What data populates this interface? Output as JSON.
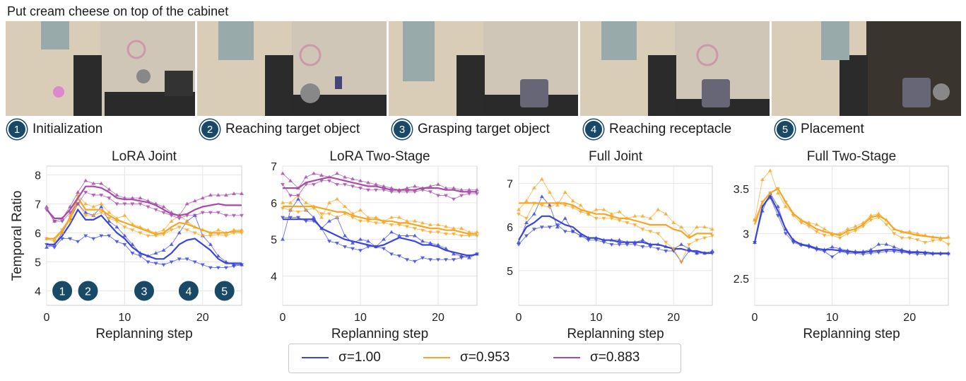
{
  "task": "Put cream cheese on top of the cabinet",
  "steps": [
    {
      "num": "1",
      "label": "Initialization"
    },
    {
      "num": "2",
      "label": "Reaching target object"
    },
    {
      "num": "3",
      "label": "Grasping target object"
    },
    {
      "num": "4",
      "label": "Reaching receptacle"
    },
    {
      "num": "5",
      "label": "Placement"
    }
  ],
  "legend": [
    {
      "label": "σ=1.00",
      "color": "#3b46d9"
    },
    {
      "label": "σ=0.953",
      "color": "#f5a623"
    },
    {
      "label": "σ=0.883",
      "color": "#a64ca6"
    }
  ],
  "chart_data": [
    {
      "type": "line",
      "title": "LoRA Joint",
      "xlabel": "Replanning step",
      "ylabel": "Temporal Ratio",
      "xlim": [
        0,
        25
      ],
      "ylim": [
        3.5,
        8.3
      ],
      "xticks": [
        0,
        10,
        20
      ],
      "yticks": [
        4,
        5,
        6,
        7,
        8
      ],
      "grid": true,
      "step_markers": [
        {
          "label": "1",
          "x": 2
        },
        {
          "label": "2",
          "x": 5.3
        },
        {
          "label": "3",
          "x": 12.5
        },
        {
          "label": "4",
          "x": 18.2
        },
        {
          "label": "5",
          "x": 22.8
        }
      ],
      "series": [
        {
          "name": "σ=1.00",
          "color": "#3b46d9",
          "smooth": [
            5.6,
            5.6,
            5.9,
            6.3,
            6.8,
            6.45,
            6.45,
            6.6,
            6.3,
            6.0,
            5.8,
            5.5,
            5.3,
            5.2,
            5.1,
            5.1,
            5.3,
            5.6,
            5.75,
            5.8,
            5.6,
            5.4,
            5.1,
            4.95,
            4.95,
            4.95
          ],
          "raw_up": [
            5.5,
            5.6,
            6.0,
            6.5,
            7.0,
            6.7,
            6.6,
            6.9,
            6.4,
            6.2,
            5.9,
            5.6,
            5.3,
            5.2,
            5.3,
            5.4,
            5.6,
            6.0,
            6.4,
            6.6,
            5.9,
            5.6,
            5.2,
            5.0,
            4.9,
            4.9
          ],
          "raw_down": [
            5.6,
            5.5,
            5.8,
            5.8,
            5.7,
            5.9,
            5.8,
            5.9,
            5.9,
            5.7,
            5.6,
            5.3,
            5.2,
            5.0,
            4.95,
            4.9,
            5.0,
            5.1,
            5.1,
            5.0,
            4.9,
            4.8,
            4.8,
            4.8,
            4.85,
            4.9
          ]
        },
        {
          "name": "σ=0.953",
          "color": "#f5a623",
          "smooth": [
            5.8,
            5.8,
            6.1,
            6.5,
            7.2,
            6.8,
            6.8,
            6.8,
            6.6,
            6.45,
            6.35,
            6.25,
            6.15,
            6.05,
            5.95,
            6.0,
            6.2,
            6.35,
            6.3,
            6.2,
            6.1,
            6.0,
            6.0,
            6.0,
            6.05,
            6.05
          ],
          "raw_up": [
            5.8,
            5.8,
            6.0,
            6.6,
            7.3,
            7.0,
            6.9,
            7.0,
            6.7,
            6.5,
            6.6,
            6.3,
            6.2,
            6.1,
            6.0,
            6.1,
            6.4,
            6.6,
            6.4,
            6.2,
            6.1,
            6.0,
            6.1,
            6.0,
            6.1,
            6.1
          ],
          "raw_down": [
            5.8,
            5.7,
            6.1,
            6.4,
            7.0,
            6.6,
            6.6,
            6.7,
            6.5,
            6.4,
            6.2,
            6.1,
            6.0,
            5.9,
            5.9,
            5.95,
            6.1,
            6.2,
            6.1,
            6.0,
            5.9,
            5.9,
            5.95,
            5.9,
            6.0,
            6.0
          ]
        },
        {
          "name": "σ=0.883",
          "color": "#a64ca6",
          "smooth": [
            6.8,
            6.5,
            6.5,
            6.8,
            7.2,
            7.6,
            7.6,
            7.55,
            7.4,
            7.2,
            7.15,
            7.15,
            7.1,
            7.05,
            6.95,
            6.8,
            6.65,
            6.6,
            6.65,
            6.8,
            6.9,
            6.95,
            7.0,
            6.95,
            6.95,
            6.95
          ],
          "raw_up": [
            6.9,
            6.4,
            6.5,
            6.9,
            7.4,
            7.8,
            7.7,
            7.7,
            7.5,
            7.3,
            7.2,
            7.2,
            7.2,
            7.1,
            7.0,
            6.9,
            6.7,
            6.6,
            7.0,
            7.1,
            7.2,
            7.3,
            7.3,
            7.3,
            7.35,
            7.35
          ],
          "raw_down": [
            6.8,
            6.4,
            6.4,
            6.7,
            7.0,
            7.4,
            7.3,
            7.3,
            7.2,
            7.0,
            7.0,
            7.0,
            7.0,
            6.9,
            6.8,
            6.7,
            6.6,
            6.5,
            6.6,
            6.6,
            6.7,
            6.7,
            6.7,
            6.6,
            6.6,
            6.6
          ]
        }
      ]
    },
    {
      "type": "line",
      "title": "LoRA Two-Stage",
      "xlabel": "Replanning step",
      "ylabel": "",
      "xlim": [
        0,
        25
      ],
      "ylim": [
        3.2,
        7.0
      ],
      "xticks": [
        0,
        10,
        20
      ],
      "yticks": [
        4,
        5,
        6,
        7
      ],
      "grid": true,
      "series": [
        {
          "name": "σ=1.00",
          "color": "#3b46d9",
          "smooth": [
            5.55,
            5.55,
            5.55,
            5.55,
            5.55,
            5.3,
            5.2,
            5.1,
            5.0,
            4.95,
            4.9,
            4.85,
            4.8,
            4.85,
            4.95,
            5.05,
            5.0,
            4.95,
            4.85,
            4.85,
            4.8,
            4.7,
            4.65,
            4.6,
            4.55,
            4.6
          ],
          "raw_up": [
            5.0,
            5.8,
            6.1,
            5.8,
            5.6,
            5.3,
            5.5,
            5.6,
            5.1,
            4.9,
            5.0,
            4.95,
            4.8,
            5.0,
            5.2,
            5.1,
            5.1,
            5.1,
            4.95,
            4.9,
            4.85,
            4.75,
            4.6,
            4.55,
            4.5,
            4.6
          ],
          "raw_down": [
            5.6,
            5.6,
            5.6,
            5.5,
            5.5,
            5.3,
            4.95,
            4.9,
            4.8,
            4.75,
            4.7,
            4.8,
            4.8,
            4.75,
            4.6,
            4.55,
            4.45,
            4.4,
            4.5,
            4.45,
            4.45,
            4.45,
            4.45,
            4.5,
            4.55,
            4.6
          ]
        },
        {
          "name": "σ=0.953",
          "color": "#f5a623",
          "smooth": [
            5.9,
            5.9,
            5.9,
            5.9,
            5.9,
            5.85,
            5.8,
            5.75,
            5.75,
            5.65,
            5.6,
            5.55,
            5.55,
            5.5,
            5.5,
            5.45,
            5.45,
            5.4,
            5.35,
            5.3,
            5.3,
            5.25,
            5.25,
            5.2,
            5.15,
            5.15
          ],
          "raw_up": [
            6.0,
            6.0,
            6.2,
            6.0,
            5.9,
            5.6,
            6.0,
            6.1,
            5.9,
            5.7,
            5.8,
            5.6,
            5.6,
            5.5,
            5.6,
            5.6,
            5.5,
            5.5,
            5.45,
            5.4,
            5.4,
            5.35,
            5.3,
            5.3,
            5.2,
            5.2
          ],
          "raw_down": [
            5.85,
            5.8,
            5.75,
            5.8,
            5.85,
            5.7,
            5.7,
            5.6,
            5.7,
            5.6,
            5.5,
            5.5,
            5.45,
            5.45,
            5.4,
            5.4,
            5.35,
            5.3,
            5.25,
            5.2,
            5.2,
            5.15,
            5.15,
            5.1,
            5.1,
            5.1
          ]
        },
        {
          "name": "σ=0.883",
          "color": "#a64ca6",
          "smooth": [
            6.4,
            6.4,
            6.4,
            6.55,
            6.6,
            6.65,
            6.7,
            6.65,
            6.6,
            6.55,
            6.5,
            6.45,
            6.45,
            6.4,
            6.35,
            6.35,
            6.35,
            6.35,
            6.4,
            6.4,
            6.4,
            6.35,
            6.35,
            6.3,
            6.3,
            6.3
          ],
          "raw_up": [
            6.8,
            6.6,
            6.4,
            6.7,
            6.8,
            6.75,
            6.7,
            6.8,
            6.7,
            6.65,
            6.6,
            6.55,
            6.5,
            6.45,
            6.4,
            6.35,
            6.4,
            6.45,
            6.4,
            6.45,
            6.5,
            6.4,
            6.4,
            6.35,
            6.35,
            6.35
          ],
          "raw_down": [
            6.5,
            6.2,
            6.2,
            6.5,
            6.5,
            6.6,
            6.6,
            6.5,
            6.5,
            6.45,
            6.4,
            6.35,
            6.35,
            6.35,
            6.3,
            6.3,
            6.3,
            6.3,
            6.35,
            6.3,
            6.2,
            6.2,
            6.1,
            6.2,
            6.25,
            6.25
          ]
        }
      ]
    },
    {
      "type": "line",
      "title": "Full Joint",
      "xlabel": "Replanning step",
      "ylabel": "",
      "xlim": [
        0,
        25
      ],
      "ylim": [
        4.2,
        7.4
      ],
      "xticks": [
        0,
        10,
        20
      ],
      "yticks": [
        5,
        6,
        7
      ],
      "grid": true,
      "series": [
        {
          "name": "σ=1.00",
          "color": "#3b46d9",
          "smooth": [
            5.7,
            6.0,
            6.1,
            6.25,
            6.25,
            6.15,
            6.05,
            6.0,
            5.85,
            5.75,
            5.75,
            5.7,
            5.7,
            5.65,
            5.65,
            5.65,
            5.65,
            5.6,
            5.6,
            5.55,
            5.5,
            5.5,
            5.45,
            5.45,
            5.4,
            5.4
          ],
          "raw_up": [
            5.65,
            6.1,
            6.3,
            6.7,
            6.5,
            6.0,
            6.2,
            5.9,
            5.8,
            5.75,
            5.75,
            5.7,
            5.7,
            5.7,
            5.65,
            5.65,
            5.7,
            5.6,
            5.6,
            5.55,
            5.5,
            5.6,
            5.5,
            5.4,
            5.4,
            5.45
          ],
          "raw_down": [
            5.6,
            5.8,
            5.95,
            6.0,
            6.0,
            6.05,
            5.9,
            5.9,
            5.8,
            5.7,
            5.7,
            5.65,
            5.6,
            5.6,
            5.6,
            5.6,
            5.55,
            5.55,
            5.5,
            5.45,
            5.45,
            5.2,
            5.45,
            5.4,
            5.4,
            5.4
          ]
        },
        {
          "name": "σ=0.953",
          "color": "#f5a623",
          "smooth": [
            6.55,
            6.55,
            6.55,
            6.55,
            6.55,
            6.55,
            6.55,
            6.5,
            6.4,
            6.35,
            6.3,
            6.3,
            6.25,
            6.2,
            6.2,
            6.15,
            6.1,
            6.05,
            6.05,
            6.05,
            5.95,
            5.9,
            5.75,
            5.85,
            5.85,
            5.85
          ],
          "raw_up": [
            6.4,
            6.6,
            6.9,
            7.1,
            6.8,
            6.5,
            6.8,
            6.6,
            6.5,
            6.3,
            6.4,
            6.4,
            6.3,
            6.35,
            6.2,
            6.25,
            6.25,
            6.2,
            6.4,
            6.3,
            6.1,
            6.0,
            5.8,
            6.0,
            6.0,
            5.95
          ],
          "raw_down": [
            6.3,
            6.2,
            6.55,
            6.5,
            6.45,
            6.55,
            6.5,
            6.45,
            6.35,
            6.3,
            6.2,
            6.2,
            6.2,
            6.15,
            6.1,
            6.05,
            5.95,
            5.9,
            5.85,
            5.65,
            5.5,
            5.2,
            5.6,
            5.7,
            5.75,
            5.8
          ]
        }
      ]
    },
    {
      "type": "line",
      "title": "Full Two-Stage",
      "xlabel": "Replanning step",
      "ylabel": "",
      "xlim": [
        0,
        25
      ],
      "ylim": [
        2.2,
        3.75
      ],
      "xticks": [
        0,
        10,
        20
      ],
      "yticks": [
        2.5,
        3.0,
        3.5
      ],
      "grid": true,
      "series": [
        {
          "name": "σ=1.00",
          "color": "#3b46d9",
          "smooth": [
            2.9,
            3.3,
            3.42,
            3.25,
            3.05,
            2.92,
            2.88,
            2.86,
            2.83,
            2.82,
            2.82,
            2.81,
            2.8,
            2.79,
            2.79,
            2.8,
            2.81,
            2.82,
            2.82,
            2.81,
            2.79,
            2.79,
            2.79,
            2.78,
            2.78,
            2.78
          ],
          "raw_up": [
            2.9,
            3.25,
            3.45,
            3.3,
            3.05,
            2.93,
            2.88,
            2.87,
            2.84,
            2.82,
            2.85,
            2.83,
            2.81,
            2.8,
            2.8,
            2.82,
            2.88,
            2.88,
            2.85,
            2.82,
            2.8,
            2.8,
            2.79,
            2.78,
            2.78,
            2.78
          ],
          "raw_down": [
            2.9,
            3.3,
            3.4,
            3.2,
            3.0,
            2.9,
            2.87,
            2.85,
            2.82,
            2.8,
            2.74,
            2.8,
            2.78,
            2.78,
            2.77,
            2.78,
            2.79,
            2.8,
            2.8,
            2.79,
            2.78,
            2.77,
            2.77,
            2.77,
            2.77,
            2.77
          ]
        },
        {
          "name": "σ=0.953",
          "color": "#f5a623",
          "smooth": [
            3.1,
            3.35,
            3.45,
            3.5,
            3.35,
            3.22,
            3.15,
            3.1,
            3.05,
            3.02,
            3.0,
            2.98,
            3.03,
            3.05,
            3.1,
            3.18,
            3.2,
            3.15,
            3.05,
            3.02,
            3.0,
            2.98,
            2.97,
            2.96,
            2.95,
            2.95
          ],
          "raw_up": [
            3.15,
            3.6,
            3.7,
            3.45,
            3.3,
            3.22,
            3.15,
            3.12,
            3.1,
            3.05,
            3.0,
            3.0,
            3.05,
            3.08,
            3.12,
            3.2,
            3.22,
            3.15,
            3.05,
            3.02,
            3.02,
            3.0,
            2.98,
            2.96,
            2.95,
            2.96
          ],
          "raw_down": [
            3.15,
            3.35,
            3.45,
            3.5,
            3.35,
            3.2,
            3.12,
            3.08,
            3.02,
            2.98,
            2.98,
            2.95,
            3.0,
            3.03,
            3.08,
            3.15,
            3.18,
            3.1,
            3.0,
            2.95,
            2.95,
            2.93,
            2.9,
            2.92,
            2.93,
            2.88
          ]
        }
      ]
    }
  ]
}
